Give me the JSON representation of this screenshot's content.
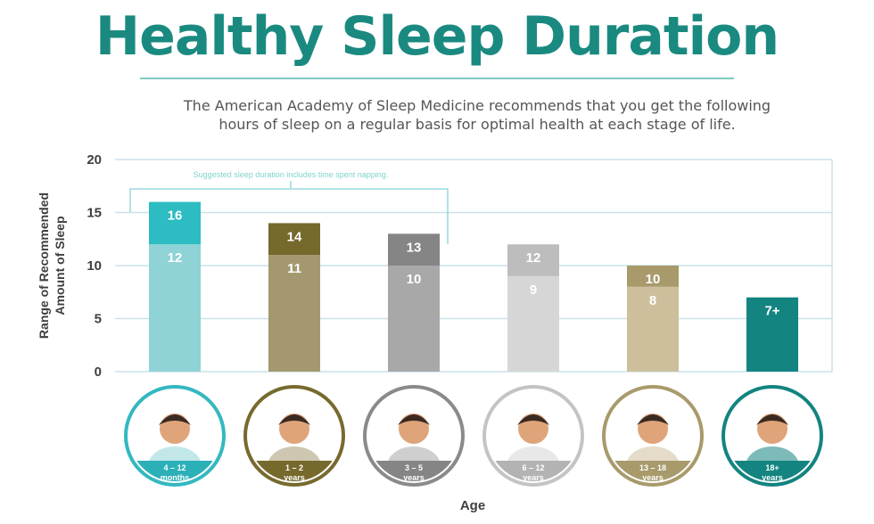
{
  "header": {
    "title": "Healthy Sleep Duration",
    "subtitle_line1": "The American Academy of Sleep Medicine recommends that you get the following",
    "subtitle_line2": "hours of sleep on a regular basis for optimal health at each stage of life."
  },
  "chart_data": {
    "type": "bar",
    "ylabel_line1": "Range of Recommended",
    "ylabel_line2": "Amount of Sleep",
    "xlabel": "Age",
    "ylim": [
      0,
      20
    ],
    "yticks": [
      0,
      5,
      10,
      15,
      20
    ],
    "grid": true,
    "annotation": "Suggested sleep duration includes time spent napping.",
    "annotation_spans_categories": [
      "4 – 12 months",
      "1 – 2 years",
      "3 – 5 years"
    ],
    "categories": [
      {
        "line1": "4 – 12",
        "line2": "months",
        "low": 12,
        "high": 16,
        "low_label": "12",
        "high_label": "16",
        "color_low": "#8fd3d6",
        "color_high": "#2cbcc2",
        "ring": "#34b8c0",
        "footer": "#2cb0b8"
      },
      {
        "line1": "1 – 2",
        "line2": "years",
        "low": 11,
        "high": 14,
        "low_label": "11",
        "high_label": "14",
        "color_low": "#a49871",
        "color_high": "#76692c",
        "ring": "#766a2e",
        "footer": "#76692c"
      },
      {
        "line1": "3 – 5",
        "line2": "years",
        "low": 10,
        "high": 13,
        "low_label": "10",
        "high_label": "13",
        "color_low": "#a8a8a8",
        "color_high": "#858585",
        "ring": "#8a8a8a",
        "footer": "#858585"
      },
      {
        "line1": "6 – 12",
        "line2": "years",
        "low": 9,
        "high": 12,
        "low_label": "9",
        "high_label": "12",
        "color_low": "#d6d6d6",
        "color_high": "#bdbdbd",
        "ring": "#c4c4c4",
        "footer": "#b3b3b3"
      },
      {
        "line1": "13 – 18",
        "line2": "years",
        "low": 8,
        "high": 10,
        "low_label": "8",
        "high_label": "10",
        "color_low": "#cdbf9c",
        "color_high": "#a89a6b",
        "ring": "#a89a6b",
        "footer": "#a89a6b"
      },
      {
        "line1": "18+",
        "line2": "years",
        "low": null,
        "high": 7,
        "low_label": null,
        "high_label": "7+",
        "color_low": null,
        "color_high": "#138480",
        "ring": "#138480",
        "footer": "#138480"
      }
    ]
  },
  "colors": {
    "title": "#1a8a80",
    "axis_text": "#3f3f3f",
    "grid": "#c9e2e8",
    "annotation": "#7fd3cf",
    "bracket": "#8ad3d6"
  }
}
